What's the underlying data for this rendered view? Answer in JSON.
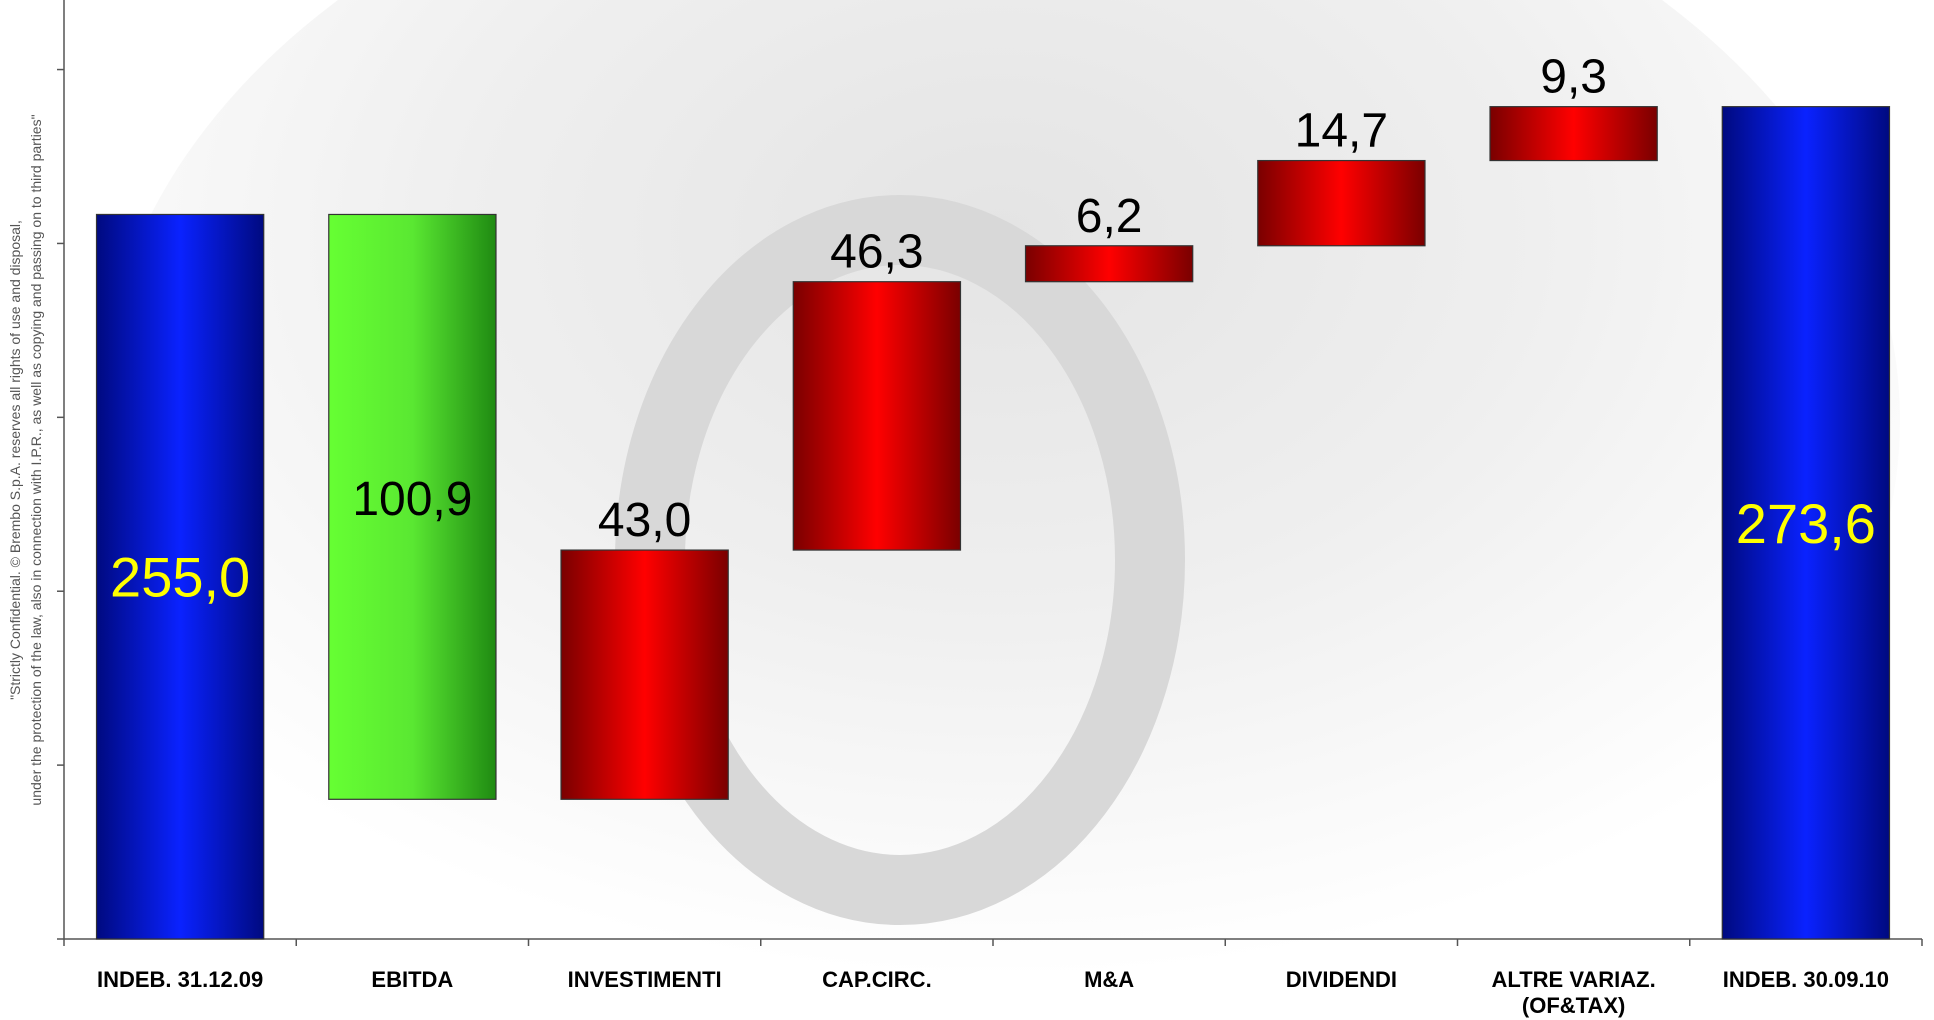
{
  "chart_data": {
    "type": "waterfall",
    "categories": [
      "INDEB. 31.12.09",
      "EBITDA",
      "INVESTIMENTI",
      "CAP.CIRC.",
      "M&A",
      "DIVIDENDI",
      "ALTRE VARIAZ. (OF&TAX)",
      "INDEB. 30.09.10"
    ],
    "values": [
      255.0,
      100.9,
      43.0,
      46.3,
      6.2,
      14.7,
      9.3,
      273.6
    ],
    "value_labels": [
      "255,0",
      "100,9",
      "43,0",
      "46,3",
      "6,2",
      "14,7",
      "9,3",
      "273,6"
    ],
    "measure": [
      "total",
      "decrease",
      "increase",
      "increase",
      "increase",
      "increase",
      "increase",
      "total"
    ],
    "colors": {
      "total": "#0a1fe0",
      "decrease": "#5cf03a",
      "increase": "#ff0000"
    },
    "ylim": [
      130,
      292
    ],
    "yticks": [
      130,
      160,
      190,
      220,
      250,
      280
    ],
    "notice": [
      "\"Strictly Confidential. © Brembo S.p.A. reserves all rights of use and disposal,",
      "under the protection of the law, also in connection with I.P.R., as well as copying and passing on to third parties\""
    ]
  }
}
